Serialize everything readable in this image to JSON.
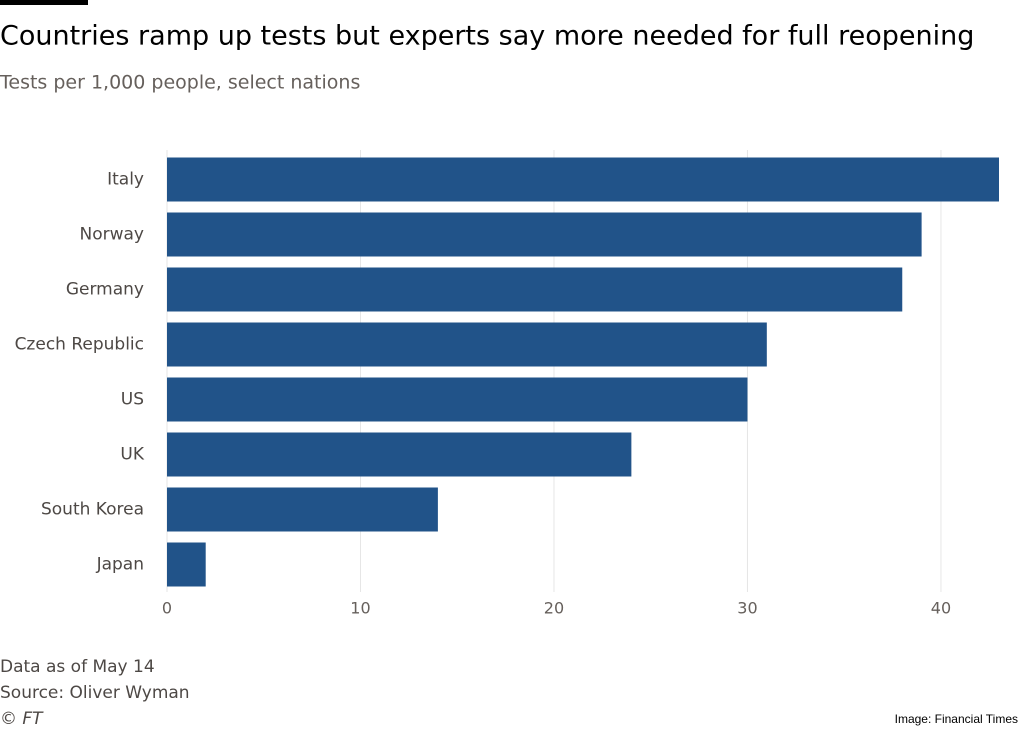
{
  "chart_data": {
    "type": "bar",
    "orientation": "horizontal",
    "title": "Countries ramp up tests but experts say more needed for full reopening",
    "subtitle": "Tests per 1,000 people, select nations",
    "categories": [
      "Italy",
      "Norway",
      "Germany",
      "Czech Republic",
      "US",
      "UK",
      "South Korea",
      "Japan"
    ],
    "values": [
      43,
      39,
      38,
      31,
      30,
      24,
      14,
      2
    ],
    "color": "#215389",
    "xlim": [
      0,
      43
    ],
    "xticks": [
      0,
      10,
      20,
      30,
      40
    ],
    "grid": true,
    "note": "Data as of May 14",
    "source": "Source: Oliver Wyman",
    "copyright": "© FT",
    "credit": "Image: Financial Times"
  }
}
